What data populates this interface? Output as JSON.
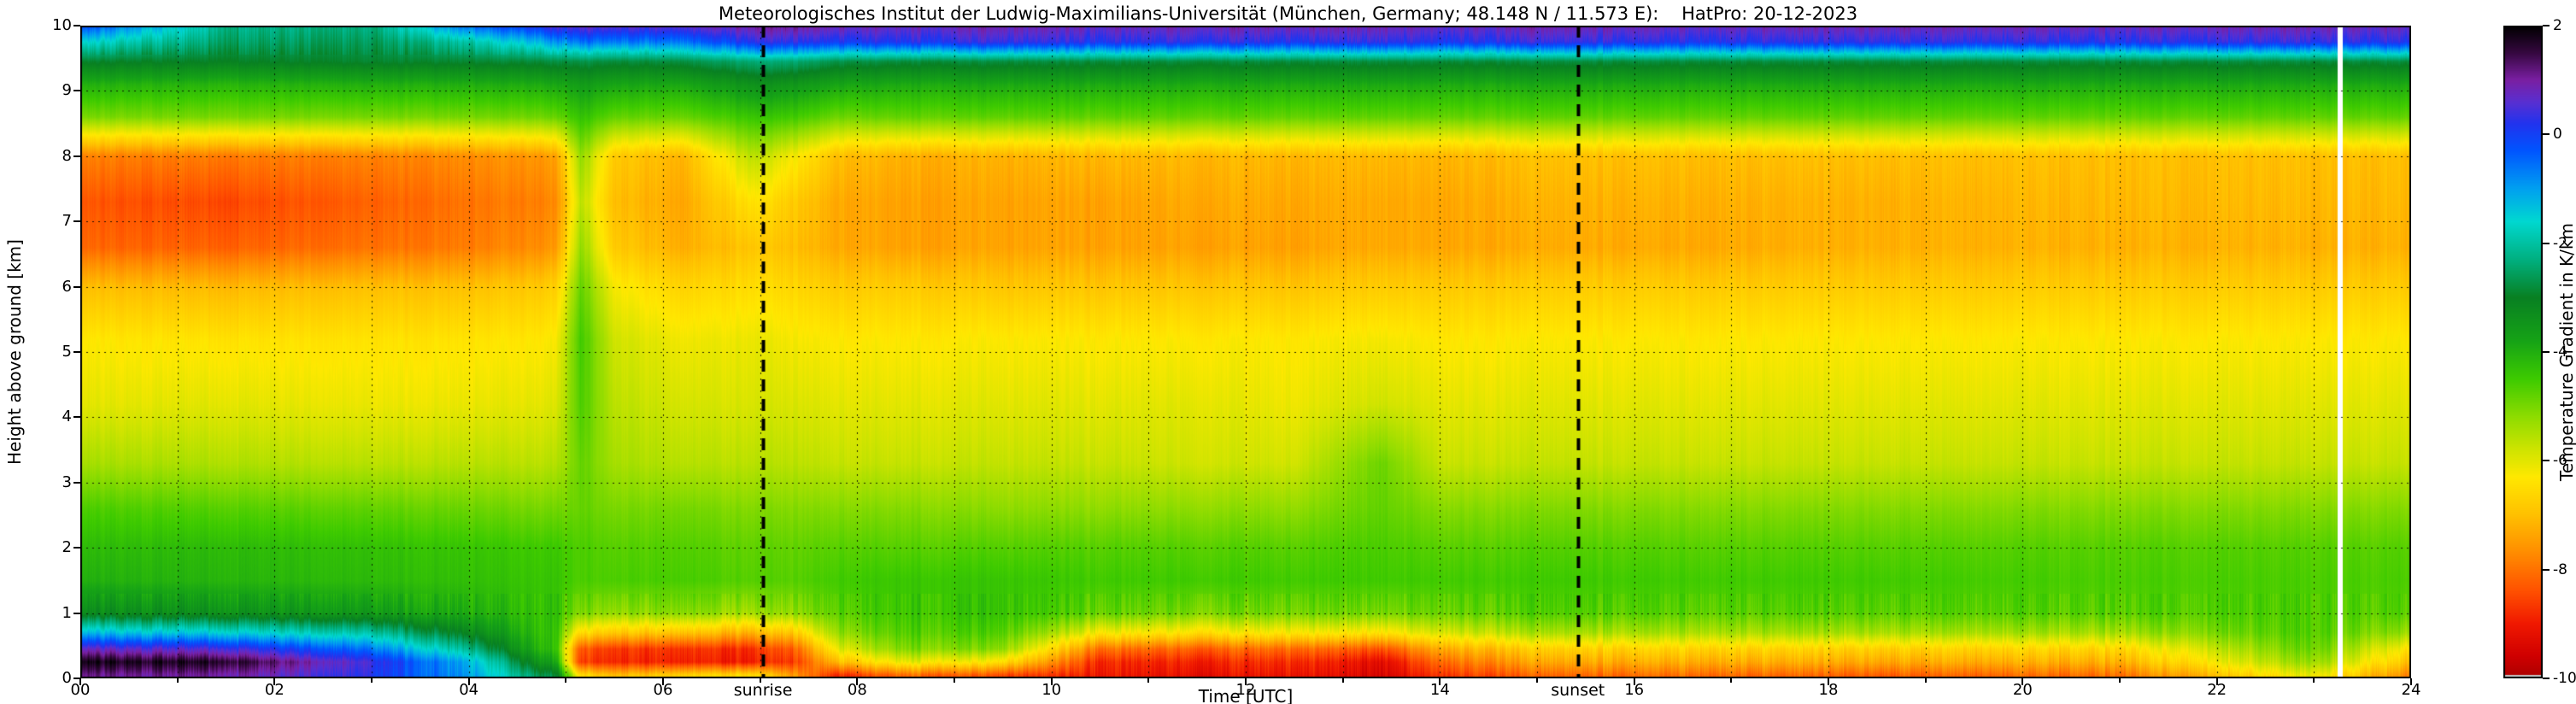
{
  "title": "Meteorologisches Institut der Ludwig-Maximilians-Universität (München, Germany; 48.148 N / 11.573 E):    HatPro: 20-12-2023",
  "axes": {
    "xlabel": "Time [UTC]",
    "ylabel": "Height above ground [km]",
    "x_ticks": [
      "00",
      "02",
      "04",
      "06",
      "08",
      "10",
      "12",
      "14",
      "16",
      "18",
      "20",
      "22",
      "24"
    ],
    "y_ticks": [
      "0",
      "1",
      "2",
      "3",
      "4",
      "5",
      "6",
      "7",
      "8",
      "9",
      "10"
    ],
    "x_range_hours": [
      0,
      24
    ],
    "y_range_km": [
      0,
      10
    ]
  },
  "colorbar": {
    "label": "Temperature Gradient in K/km",
    "ticks": [
      "2",
      "0",
      "-2",
      "-4",
      "-6",
      "-8",
      "-10"
    ],
    "tick_values": [
      2,
      0,
      -2,
      -4,
      -6,
      -8,
      -10
    ]
  },
  "annotations": {
    "sunrise": {
      "label": "sunrise",
      "time_utc": 7.03
    },
    "sunset": {
      "label": "sunset",
      "time_utc": 15.42
    }
  },
  "chart_data": {
    "type": "heatmap",
    "x_unit": "hours UTC",
    "y_unit": "km above ground",
    "value_unit": "K/km",
    "value_range": [
      2,
      -10
    ],
    "grid": {
      "x_step_hours": 1,
      "y_step_km": 1,
      "style": "dotted"
    },
    "data_gap_hours": [
      23.24,
      23.3
    ],
    "sunrise_line_utc": 7.03,
    "sunset_line_utc": 15.42,
    "times": [
      0.0,
      1.5,
      3.0,
      4.0,
      4.9,
      5.15,
      5.5,
      6.2,
      6.9,
      7.35,
      7.8,
      8.5,
      9.5,
      10.5,
      11.5,
      12.5,
      13.4,
      14.0,
      15.0,
      16.5,
      18.5,
      21.0,
      23.0,
      24.0
    ],
    "heights": [
      0.05,
      0.25,
      0.45,
      0.7,
      1.0,
      1.5,
      2.0,
      2.6,
      3.3,
      4.2,
      5.2,
      6.0,
      6.6,
      7.3,
      8.0,
      8.6,
      9.1,
      9.45,
      9.75,
      10.0
    ],
    "values": [
      [
        1.2,
        1.9,
        0.8,
        -1.2,
        -3.2,
        -4.0,
        -4.2,
        -4.6,
        -5.4,
        -6.0,
        -6.3,
        -7.0,
        -8.1,
        -8.3,
        -7.8,
        -5.0,
        -4.0,
        -2.9,
        -1.5,
        0.0
      ],
      [
        1.0,
        1.7,
        0.5,
        -1.5,
        -3.4,
        -4.1,
        -4.2,
        -4.7,
        -5.5,
        -6.0,
        -6.4,
        -7.1,
        -8.2,
        -8.5,
        -7.9,
        -5.0,
        -4.1,
        -3.0,
        -2.5,
        -2.2
      ],
      [
        0.2,
        0.4,
        -0.6,
        -2.0,
        -3.6,
        -4.2,
        -4.3,
        -4.8,
        -5.6,
        -6.1,
        -6.4,
        -7.0,
        -8.0,
        -8.2,
        -7.8,
        -5.0,
        -4.0,
        -2.9,
        -2.6,
        -2.3
      ],
      [
        -1.0,
        -1.2,
        -2.2,
        -3.2,
        -4.0,
        -4.3,
        -4.4,
        -4.9,
        -5.6,
        -6.1,
        -6.4,
        -7.0,
        -7.9,
        -8.0,
        -7.7,
        -5.0,
        -4.0,
        -2.9,
        -2.0,
        -0.5
      ],
      [
        -3.0,
        -4.0,
        -4.5,
        -4.5,
        -4.4,
        -4.4,
        -4.5,
        -5.0,
        -5.6,
        -6.0,
        -6.3,
        -6.8,
        -7.6,
        -7.8,
        -7.5,
        -4.9,
        -3.9,
        -2.8,
        -1.0,
        0.5
      ],
      [
        -6.5,
        -8.6,
        -8.3,
        -6.5,
        -5.0,
        -4.6,
        -4.6,
        -4.8,
        -4.8,
        -4.6,
        -4.5,
        -4.8,
        -5.2,
        -5.6,
        -5.2,
        -4.3,
        -3.6,
        -2.7,
        -0.5,
        0.8
      ],
      [
        -7.0,
        -8.8,
        -8.6,
        -6.8,
        -5.2,
        -4.6,
        -4.7,
        -5.0,
        -5.4,
        -5.6,
        -5.8,
        -6.2,
        -6.8,
        -7.0,
        -6.8,
        -4.8,
        -3.8,
        -2.8,
        -0.6,
        0.7
      ],
      [
        -6.8,
        -9.0,
        -8.8,
        -7.0,
        -5.2,
        -4.6,
        -4.7,
        -5.0,
        -5.6,
        -5.9,
        -6.2,
        -6.7,
        -7.3,
        -7.4,
        -7.2,
        -4.9,
        -3.9,
        -2.8,
        -0.7,
        0.6
      ],
      [
        -6.5,
        -9.0,
        -8.8,
        -7.2,
        -5.4,
        -4.7,
        -4.8,
        -5.1,
        -5.6,
        -5.9,
        -6.1,
        -6.5,
        -6.9,
        -6.4,
        -5.6,
        -4.4,
        -3.4,
        -2.4,
        0.2,
        1.0
      ],
      [
        -7.5,
        -8.6,
        -8.2,
        -6.8,
        -5.2,
        -4.7,
        -4.8,
        -5.1,
        -5.6,
        -5.9,
        -6.2,
        -6.6,
        -7.0,
        -6.8,
        -6.2,
        -4.5,
        -3.5,
        -2.4,
        0.3,
        1.1
      ],
      [
        -8.8,
        -7.0,
        -6.0,
        -5.2,
        -4.7,
        -4.5,
        -4.7,
        -5.1,
        -5.7,
        -6.0,
        -6.3,
        -6.8,
        -7.3,
        -7.3,
        -7.0,
        -4.9,
        -3.8,
        -2.7,
        0.1,
        0.9
      ],
      [
        -8.0,
        -6.0,
        -5.0,
        -4.6,
        -4.4,
        -4.4,
        -4.7,
        -5.1,
        -5.7,
        -6.0,
        -6.3,
        -6.8,
        -7.4,
        -7.4,
        -7.2,
        -4.8,
        -3.9,
        -2.8,
        0.2,
        0.8
      ],
      [
        -8.5,
        -6.5,
        -5.2,
        -4.7,
        -4.4,
        -4.4,
        -4.7,
        -5.2,
        -5.7,
        -6.0,
        -6.3,
        -6.9,
        -7.4,
        -7.4,
        -7.2,
        -4.8,
        -3.9,
        -2.8,
        0.3,
        0.9
      ],
      [
        -9.0,
        -8.8,
        -8.0,
        -6.2,
        -4.8,
        -4.5,
        -4.7,
        -5.2,
        -5.7,
        -6.0,
        -6.3,
        -6.9,
        -7.4,
        -7.4,
        -7.1,
        -4.8,
        -3.9,
        -2.8,
        0.2,
        0.8
      ],
      [
        -9.2,
        -8.9,
        -8.2,
        -6.4,
        -5.0,
        -4.5,
        -4.7,
        -5.2,
        -5.8,
        -6.0,
        -6.3,
        -6.9,
        -7.4,
        -7.3,
        -7.1,
        -4.8,
        -3.9,
        -2.8,
        0.3,
        0.9
      ],
      [
        -9.0,
        -8.7,
        -8.0,
        -6.2,
        -4.9,
        -4.5,
        -4.7,
        -5.2,
        -5.8,
        -6.1,
        -6.3,
        -6.9,
        -7.4,
        -7.3,
        -7.1,
        -4.8,
        -3.9,
        -2.8,
        0.2,
        0.9
      ],
      [
        -9.5,
        -9.3,
        -8.4,
        -6.4,
        -5.0,
        -4.5,
        -4.6,
        -4.8,
        -4.9,
        -5.8,
        -6.2,
        -6.8,
        -7.3,
        -7.3,
        -7.1,
        -4.8,
        -3.9,
        -2.8,
        0.3,
        0.9
      ],
      [
        -8.6,
        -8.0,
        -7.2,
        -5.8,
        -4.8,
        -4.5,
        -4.7,
        -5.1,
        -5.7,
        -6.0,
        -6.3,
        -6.8,
        -7.3,
        -7.3,
        -7.1,
        -4.8,
        -3.9,
        -2.8,
        0.2,
        0.8
      ],
      [
        -8.2,
        -7.4,
        -6.8,
        -5.5,
        -4.7,
        -4.5,
        -4.7,
        -5.1,
        -5.7,
        -6.0,
        -6.3,
        -6.8,
        -7.3,
        -7.2,
        -7.0,
        -4.8,
        -3.9,
        -2.8,
        0.3,
        0.9
      ],
      [
        -8.0,
        -7.2,
        -6.6,
        -5.4,
        -4.7,
        -4.5,
        -4.7,
        -5.1,
        -5.7,
        -6.0,
        -6.3,
        -6.8,
        -7.3,
        -7.2,
        -7.0,
        -4.8,
        -3.9,
        -2.8,
        0.2,
        0.8
      ],
      [
        -8.2,
        -7.3,
        -6.7,
        -5.4,
        -4.7,
        -4.5,
        -4.7,
        -5.1,
        -5.7,
        -6.0,
        -6.3,
        -6.8,
        -7.2,
        -7.2,
        -7.0,
        -4.8,
        -3.9,
        -2.8,
        0.3,
        0.9
      ],
      [
        -8.0,
        -7.2,
        -6.6,
        -5.4,
        -4.7,
        -4.6,
        -4.7,
        -5.1,
        -5.7,
        -6.0,
        -6.3,
        -6.8,
        -7.2,
        -7.1,
        -7.0,
        -4.8,
        -3.9,
        -2.8,
        0.2,
        0.8
      ],
      [
        -6.0,
        -5.2,
        -4.8,
        -4.6,
        -4.6,
        -4.6,
        -4.7,
        -5.1,
        -5.7,
        -6.0,
        -6.3,
        -6.8,
        -7.2,
        -7.1,
        -7.0,
        -4.8,
        -3.9,
        -2.8,
        0.3,
        0.9
      ],
      [
        -7.8,
        -7.0,
        -6.4,
        -5.3,
        -4.7,
        -4.6,
        -4.7,
        -5.1,
        -5.7,
        -6.0,
        -6.3,
        -6.8,
        -7.2,
        -7.1,
        -7.0,
        -4.8,
        -3.9,
        -2.8,
        0.2,
        0.8
      ]
    ],
    "colormap": [
      [
        2.0,
        "#000000"
      ],
      [
        1.5,
        "#35083f"
      ],
      [
        1.0,
        "#7a1fa2"
      ],
      [
        0.6,
        "#5a2fd0"
      ],
      [
        0.2,
        "#2233ee"
      ],
      [
        -0.3,
        "#0055ff"
      ],
      [
        -1.0,
        "#00a0f0"
      ],
      [
        -1.6,
        "#00d8d0"
      ],
      [
        -2.3,
        "#00b080"
      ],
      [
        -3.0,
        "#088022"
      ],
      [
        -3.8,
        "#16a316"
      ],
      [
        -4.5,
        "#3ecb00"
      ],
      [
        -5.2,
        "#8fdc00"
      ],
      [
        -5.8,
        "#cfe400"
      ],
      [
        -6.3,
        "#ffe800"
      ],
      [
        -7.0,
        "#ffc000"
      ],
      [
        -7.7,
        "#ff8c00"
      ],
      [
        -8.4,
        "#ff5000"
      ],
      [
        -9.0,
        "#f01800"
      ],
      [
        -9.6,
        "#cf0000"
      ],
      [
        -9.93,
        "#b00000"
      ],
      [
        -9.95,
        "#c8c8c8"
      ],
      [
        -10.0,
        "#c8c8c8"
      ]
    ]
  }
}
